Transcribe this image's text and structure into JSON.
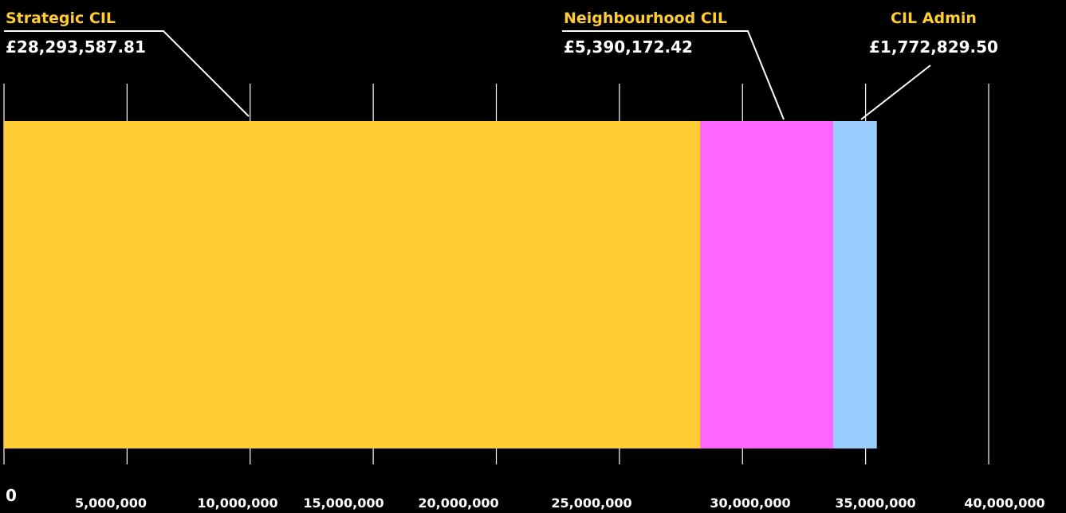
{
  "chart_data": {
    "type": "bar",
    "orientation": "horizontal-stacked",
    "categories": [
      "Strategic CIL",
      "Neighbourhood CIL",
      "CIL Admin"
    ],
    "values": [
      28293587.81,
      5390172.42,
      1772829.5
    ],
    "value_labels": [
      "£28,293,587.81",
      "£5,390,172.42",
      "£1,772,829.50"
    ],
    "colors": [
      "#ffcc33",
      "#ff66ff",
      "#99ccff"
    ],
    "label_color": "#ffcc33",
    "xlim": [
      0,
      40000000
    ],
    "x_ticks": [
      0,
      5000000,
      10000000,
      15000000,
      20000000,
      25000000,
      30000000,
      35000000,
      40000000
    ],
    "x_tick_labels": [
      "0",
      "5,000,000",
      "10,000,000",
      "15,000,000",
      "20,000,000",
      "25,000,000",
      "30,000,000",
      "35,000,000",
      "40,000,000"
    ],
    "grid": true,
    "legend": "none",
    "title": "",
    "xlabel": "",
    "ylabel": ""
  }
}
